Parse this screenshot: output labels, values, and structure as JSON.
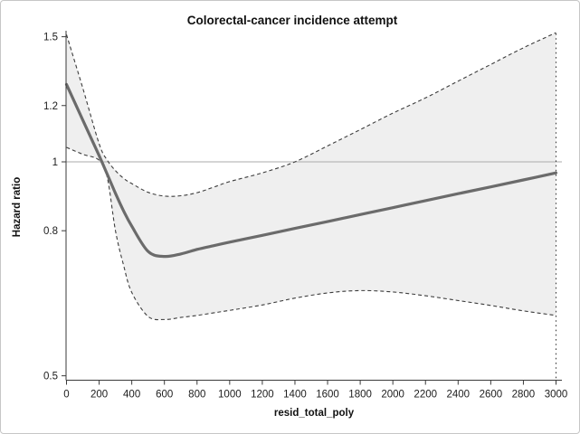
{
  "figure": {
    "title": "Colorectal-cancer incidence attempt"
  },
  "chart_data": {
    "type": "line",
    "title": "Colorectal-cancer incidence attempt",
    "xlabel": "resid_total_poly",
    "ylabel": "Hazard ratio",
    "x_axis": {
      "min": 0,
      "max": 3000,
      "ticks": [
        0,
        200,
        400,
        600,
        800,
        1000,
        1200,
        1400,
        1600,
        1800,
        2000,
        2200,
        2400,
        2600,
        2800,
        3000
      ],
      "tick_labels": [
        "0",
        "200",
        "400",
        "600",
        "800",
        "1000",
        "1200",
        "1400",
        "1600",
        "1800",
        "2000",
        "2200",
        "2400",
        "2600",
        "2800",
        "3000"
      ]
    },
    "y_axis": {
      "scale": "log",
      "min": 0.494,
      "max": 1.53,
      "ticks": [
        0.5,
        0.8,
        1.0,
        1.2,
        1.5
      ],
      "tick_labels": [
        "0.5",
        "0.8",
        "1",
        "1.2",
        "1.5"
      ]
    },
    "reference_line_y": 1.0,
    "band_right_edge_x": 3000,
    "grid": "off",
    "legend": "none",
    "x": [
      0,
      100,
      200,
      250,
      300,
      350,
      400,
      500,
      600,
      700,
      800,
      900,
      1000,
      1200,
      1400,
      1600,
      1800,
      2000,
      2200,
      2400,
      2600,
      2800,
      3000
    ],
    "series": [
      {
        "name": "estimate",
        "style": "solid-thick",
        "values": [
          1.285,
          1.145,
          1.02,
          0.96,
          0.903,
          0.853,
          0.812,
          0.748,
          0.736,
          0.742,
          0.753,
          0.762,
          0.771,
          0.788,
          0.806,
          0.824,
          0.843,
          0.862,
          0.882,
          0.902,
          0.922,
          0.943,
          0.965
        ]
      },
      {
        "name": "upper_95_ci",
        "style": "dashed",
        "values": [
          1.51,
          1.27,
          1.06,
          1.005,
          0.972,
          0.948,
          0.932,
          0.906,
          0.895,
          0.896,
          0.905,
          0.921,
          0.938,
          0.965,
          1.0,
          1.053,
          1.11,
          1.171,
          1.23,
          1.299,
          1.371,
          1.447,
          1.52
        ]
      },
      {
        "name": "lower_95_ci",
        "style": "dashed",
        "values": [
          1.048,
          1.025,
          1.005,
          0.95,
          0.8,
          0.715,
          0.655,
          0.606,
          0.6,
          0.604,
          0.608,
          0.613,
          0.618,
          0.629,
          0.643,
          0.654,
          0.659,
          0.656,
          0.648,
          0.638,
          0.628,
          0.617,
          0.608
        ]
      }
    ],
    "band": {
      "upper": "upper_95_ci",
      "lower": "lower_95_ci"
    },
    "colors": {
      "estimate_line": "#6b6b6b",
      "ci_line": "#3d3d3d",
      "band_fill": "#efefef",
      "reference_line": "#ababab",
      "axis": "#3a3a3a",
      "text": "#111111",
      "border": "#c6c6c6",
      "background": "#ffffff"
    }
  }
}
